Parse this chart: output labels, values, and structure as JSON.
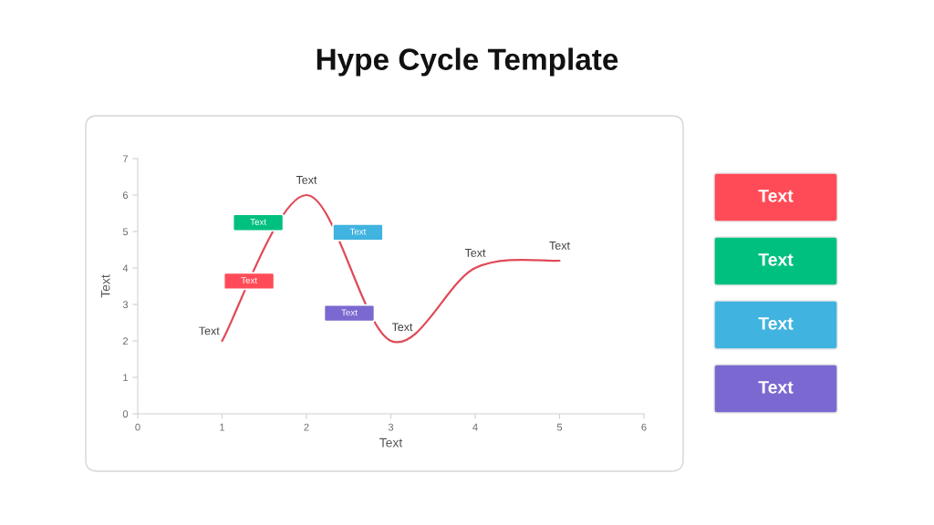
{
  "chart_data": [
    {
      "type": "line",
      "title": "Hype Cycle Template",
      "xlabel": "Text",
      "ylabel": "Text",
      "x": [
        1,
        2,
        3,
        4,
        5
      ],
      "series": [
        {
          "color": "#e04a58",
          "values": [
            2,
            6,
            2,
            4,
            4.2
          ],
          "value_labels": [
            "Text",
            "Text",
            "Text",
            "Text",
            "Text"
          ]
        }
      ],
      "xlim": [
        0,
        6
      ],
      "xticks": [
        0,
        1,
        2,
        3,
        4,
        5,
        6
      ],
      "ylim": [
        0,
        7
      ],
      "yticks": [
        0,
        1,
        2,
        3,
        4,
        5,
        6,
        7
      ],
      "annotations": [
        "Text",
        "Text",
        "Text",
        "Text"
      ]
    },
    {
      "type": "other",
      "annotations": [
        "Text",
        "Text",
        "Text",
        "Text"
      ],
      "colors": [
        "#ff4b57",
        "#00c07f",
        "#41b3e0",
        "#7b68d0"
      ]
    }
  ]
}
